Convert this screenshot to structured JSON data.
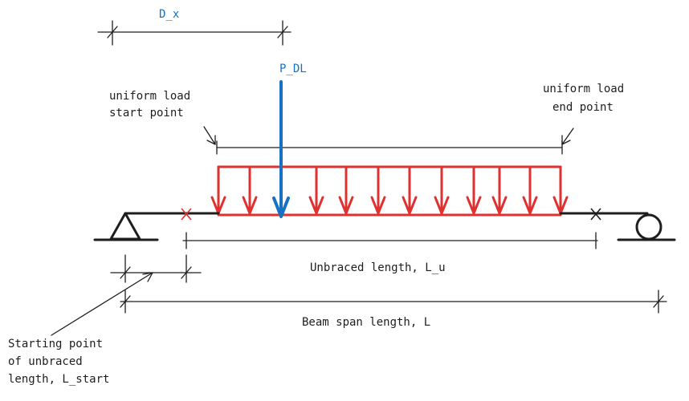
{
  "labels": {
    "d_x": "D_x",
    "p_dl": "P_DL",
    "load_start_line1": "uniform load",
    "load_start_line2": "start point",
    "load_end_line1": "uniform load",
    "load_end_line2": "end point",
    "unbraced_length": "Unbraced length, L_u",
    "beam_span": "Beam span length, L",
    "start_line1": "Starting point",
    "start_line2": "of unbraced",
    "start_line3": "length, L_start"
  },
  "colors": {
    "ink": "#1e1e1e",
    "distributed_load": "#e03131",
    "point_load": "#1971c2"
  },
  "supports": {
    "left": "pin",
    "right": "roller"
  }
}
